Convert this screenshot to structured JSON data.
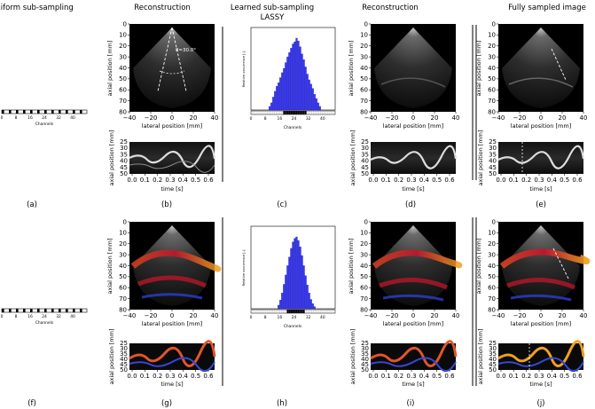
{
  "headers": {
    "uniform": "Uniform sub-sampling",
    "reconstruction": "Reconstruction",
    "learned_line1": "Learned sub-sampling",
    "learned_line2": "LASSY",
    "reconstruction2": "Reconstruction",
    "fully_sampled": "Fully sampled image"
  },
  "captions": {
    "a": "(a)",
    "b": "(b)",
    "c": "(c)",
    "d": "(d)",
    "e": "(e)",
    "f": "(f)",
    "g": "(g)",
    "h": "(h)",
    "i": "(i)",
    "j": "(j)"
  },
  "axes": {
    "axial_label": "axial position [mm]",
    "lateral_label": "lateral position [mm]",
    "time_label": "time [s]",
    "channels_label": "Channels",
    "rel_occurrence_label": "Relative occurrence [-]",
    "y_ticks": [
      "0",
      "10",
      "20",
      "30",
      "40",
      "50",
      "60",
      "70",
      "80"
    ],
    "x_ticks": [
      "−40",
      "−20",
      "0",
      "20",
      "40"
    ],
    "mmode_y_ticks": [
      "25",
      "30",
      "35",
      "40",
      "45",
      "50"
    ],
    "time_ticks": [
      "0.0",
      "0.1",
      "0.2",
      "0.3",
      "0.4",
      "0.5",
      "0.6"
    ],
    "channel_ticks": [
      "0",
      "8",
      "16",
      "24",
      "32",
      "40"
    ]
  },
  "annotations": {
    "angle_label": "θ=30.0°"
  },
  "colors": {
    "histogram_bar": "#3a3aee",
    "ultrasound_background": "#000000",
    "mmode_background": "#0a0a0a"
  },
  "chart_data": [
    {
      "panel": "c",
      "type": "bar",
      "title": "",
      "xlabel": "Channels",
      "ylabel": "Relative occurrence [-]",
      "x": [
        10,
        11,
        12,
        13,
        14,
        15,
        16,
        17,
        18,
        19,
        20,
        21,
        22,
        23,
        24,
        25,
        26,
        27,
        28,
        29,
        30,
        31,
        32,
        33,
        34,
        35,
        36,
        37,
        38
      ],
      "values": [
        0.05,
        0.1,
        0.18,
        0.26,
        0.33,
        0.38,
        0.45,
        0.52,
        0.58,
        0.66,
        0.74,
        0.8,
        0.86,
        0.92,
        0.95,
        1.0,
        0.96,
        0.88,
        0.78,
        0.7,
        0.6,
        0.5,
        0.42,
        0.36,
        0.3,
        0.22,
        0.16,
        0.1,
        0.05
      ],
      "xlim": [
        0,
        47
      ],
      "channel_ticks": [
        0,
        8,
        16,
        24,
        32,
        40
      ]
    },
    {
      "panel": "h",
      "type": "bar",
      "title": "",
      "xlabel": "Channels",
      "ylabel": "Relative occurrence [-]",
      "x": [
        15,
        16,
        17,
        18,
        19,
        20,
        21,
        22,
        23,
        24,
        25,
        26,
        27,
        28,
        29,
        30,
        31,
        32,
        33,
        34,
        35
      ],
      "values": [
        0.05,
        0.12,
        0.22,
        0.34,
        0.47,
        0.6,
        0.72,
        0.84,
        0.93,
        0.98,
        1.0,
        0.95,
        0.86,
        0.74,
        0.6,
        0.46,
        0.33,
        0.22,
        0.13,
        0.07,
        0.03
      ],
      "xlim": [
        0,
        47
      ],
      "channel_ticks": [
        0,
        8,
        16,
        24,
        32,
        40
      ]
    }
  ]
}
